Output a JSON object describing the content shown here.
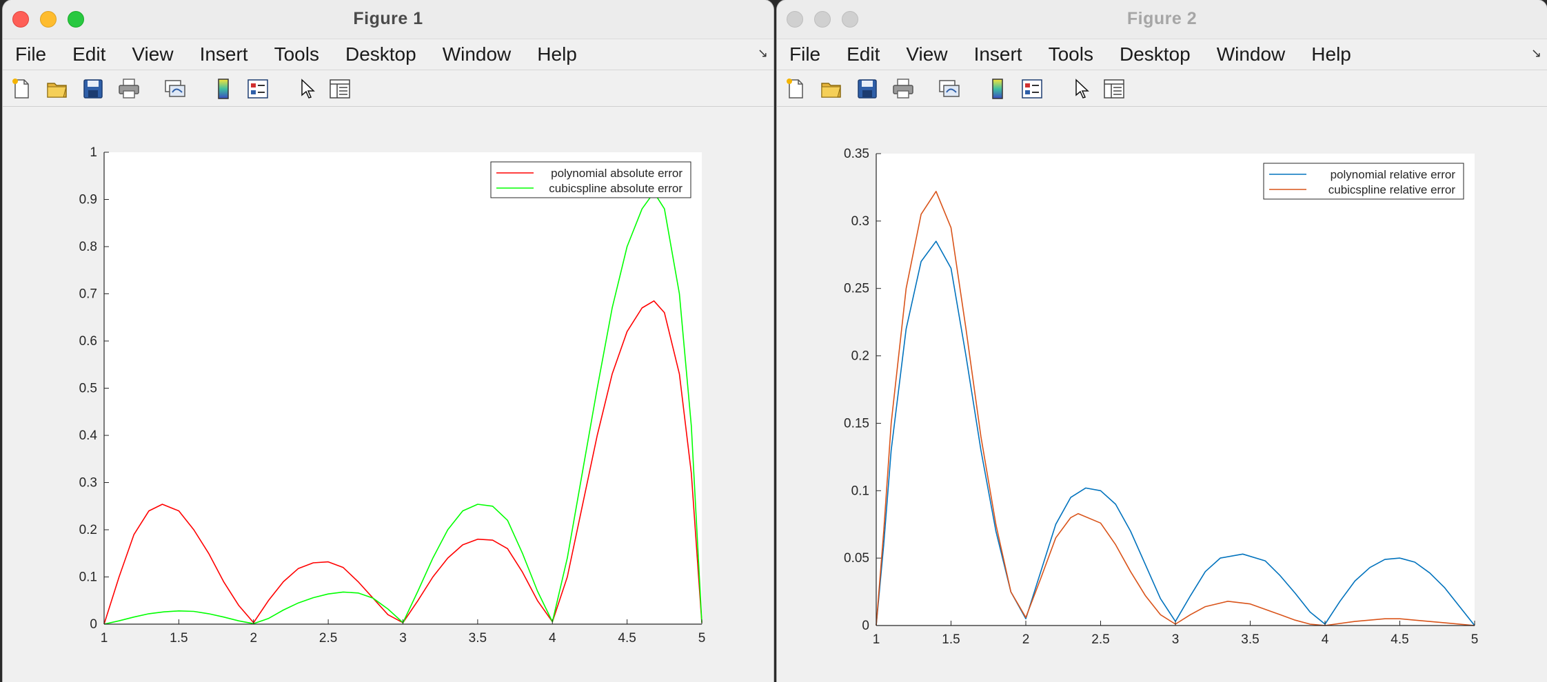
{
  "windows": [
    {
      "title": "Figure 1",
      "state": "active",
      "menu": [
        "File",
        "Edit",
        "View",
        "Insert",
        "Tools",
        "Desktop",
        "Window",
        "Help"
      ],
      "toolbar_icons": [
        "new-figure-icon",
        "open-file-icon",
        "save-icon",
        "print-icon",
        "link-plot-icon",
        "colorbar-icon",
        "legend-icon",
        "pointer-icon",
        "property-inspector-icon"
      ]
    },
    {
      "title": "Figure 2",
      "state": "inactive",
      "menu": [
        "File",
        "Edit",
        "View",
        "Insert",
        "Tools",
        "Desktop",
        "Window",
        "Help"
      ],
      "toolbar_icons": [
        "new-figure-icon",
        "open-file-icon",
        "save-icon",
        "print-icon",
        "link-plot-icon",
        "colorbar-icon",
        "legend-icon",
        "pointer-icon",
        "property-inspector-icon"
      ]
    }
  ],
  "chart_data": [
    {
      "type": "line",
      "title": "",
      "xlabel": "",
      "ylabel": "",
      "xlim": [
        1,
        5
      ],
      "ylim": [
        0,
        1
      ],
      "xticks": [
        "1",
        "1.5",
        "2",
        "2.5",
        "3",
        "3.5",
        "4",
        "4.5",
        "5"
      ],
      "yticks": [
        "0",
        "0.1",
        "0.2",
        "0.3",
        "0.4",
        "0.5",
        "0.6",
        "0.7",
        "0.8",
        "0.9",
        "1"
      ],
      "grid": false,
      "legend_position": "top-right",
      "series": [
        {
          "name": "polynomial absolute error",
          "color": "#ff0000",
          "points": [
            [
              1,
              0
            ],
            [
              1.1,
              0.1
            ],
            [
              1.2,
              0.19
            ],
            [
              1.3,
              0.24
            ],
            [
              1.39,
              0.254
            ],
            [
              1.5,
              0.24
            ],
            [
              1.6,
              0.2
            ],
            [
              1.7,
              0.15
            ],
            [
              1.8,
              0.09
            ],
            [
              1.9,
              0.04
            ],
            [
              2,
              0.003
            ],
            [
              2.1,
              0.05
            ],
            [
              2.2,
              0.09
            ],
            [
              2.3,
              0.118
            ],
            [
              2.4,
              0.13
            ],
            [
              2.5,
              0.132
            ],
            [
              2.6,
              0.12
            ],
            [
              2.7,
              0.09
            ],
            [
              2.8,
              0.055
            ],
            [
              2.9,
              0.02
            ],
            [
              3,
              0.003
            ],
            [
              3.1,
              0.05
            ],
            [
              3.2,
              0.1
            ],
            [
              3.3,
              0.14
            ],
            [
              3.4,
              0.168
            ],
            [
              3.5,
              0.18
            ],
            [
              3.6,
              0.178
            ],
            [
              3.7,
              0.16
            ],
            [
              3.8,
              0.11
            ],
            [
              3.9,
              0.05
            ],
            [
              4,
              0.005
            ],
            [
              4.1,
              0.1
            ],
            [
              4.2,
              0.25
            ],
            [
              4.3,
              0.4
            ],
            [
              4.4,
              0.53
            ],
            [
              4.5,
              0.62
            ],
            [
              4.6,
              0.67
            ],
            [
              4.68,
              0.685
            ],
            [
              4.75,
              0.66
            ],
            [
              4.85,
              0.53
            ],
            [
              4.93,
              0.32
            ],
            [
              5,
              0.003
            ]
          ]
        },
        {
          "name": "cubicspline absolute error",
          "color": "#00ff00",
          "points": [
            [
              1,
              0
            ],
            [
              1.1,
              0.007
            ],
            [
              1.2,
              0.015
            ],
            [
              1.3,
              0.022
            ],
            [
              1.4,
              0.026
            ],
            [
              1.5,
              0.028
            ],
            [
              1.6,
              0.027
            ],
            [
              1.7,
              0.022
            ],
            [
              1.8,
              0.015
            ],
            [
              1.9,
              0.007
            ],
            [
              2,
              0.001
            ],
            [
              2.1,
              0.012
            ],
            [
              2.2,
              0.03
            ],
            [
              2.3,
              0.045
            ],
            [
              2.4,
              0.056
            ],
            [
              2.5,
              0.064
            ],
            [
              2.6,
              0.068
            ],
            [
              2.7,
              0.066
            ],
            [
              2.8,
              0.055
            ],
            [
              2.9,
              0.032
            ],
            [
              3,
              0.003
            ],
            [
              3.1,
              0.07
            ],
            [
              3.2,
              0.14
            ],
            [
              3.3,
              0.2
            ],
            [
              3.4,
              0.24
            ],
            [
              3.5,
              0.254
            ],
            [
              3.6,
              0.25
            ],
            [
              3.7,
              0.22
            ],
            [
              3.8,
              0.15
            ],
            [
              3.9,
              0.07
            ],
            [
              4,
              0.005
            ],
            [
              4.1,
              0.14
            ],
            [
              4.2,
              0.32
            ],
            [
              4.3,
              0.5
            ],
            [
              4.4,
              0.67
            ],
            [
              4.5,
              0.8
            ],
            [
              4.6,
              0.88
            ],
            [
              4.68,
              0.915
            ],
            [
              4.75,
              0.88
            ],
            [
              4.85,
              0.7
            ],
            [
              4.93,
              0.42
            ],
            [
              5,
              0.003
            ]
          ]
        }
      ]
    },
    {
      "type": "line",
      "title": "",
      "xlabel": "",
      "ylabel": "",
      "xlim": [
        1,
        5
      ],
      "ylim": [
        0,
        0.35
      ],
      "xticks": [
        "1",
        "1.5",
        "2",
        "2.5",
        "3",
        "3.5",
        "4",
        "4.5",
        "5"
      ],
      "yticks": [
        "0",
        "0.05",
        "0.1",
        "0.15",
        "0.2",
        "0.25",
        "0.3",
        "0.35"
      ],
      "grid": false,
      "legend_position": "top-right",
      "series": [
        {
          "name": "polynomial relative error",
          "color": "#0072bd",
          "points": [
            [
              1,
              0
            ],
            [
              1.05,
              0.06
            ],
            [
              1.1,
              0.13
            ],
            [
              1.2,
              0.22
            ],
            [
              1.3,
              0.27
            ],
            [
              1.4,
              0.285
            ],
            [
              1.5,
              0.265
            ],
            [
              1.6,
              0.2
            ],
            [
              1.7,
              0.13
            ],
            [
              1.8,
              0.07
            ],
            [
              1.9,
              0.025
            ],
            [
              2,
              0.005
            ],
            [
              2.1,
              0.04
            ],
            [
              2.2,
              0.075
            ],
            [
              2.3,
              0.095
            ],
            [
              2.4,
              0.102
            ],
            [
              2.5,
              0.1
            ],
            [
              2.6,
              0.09
            ],
            [
              2.7,
              0.07
            ],
            [
              2.8,
              0.045
            ],
            [
              2.9,
              0.02
            ],
            [
              3,
              0.003
            ],
            [
              3.1,
              0.022
            ],
            [
              3.2,
              0.04
            ],
            [
              3.3,
              0.05
            ],
            [
              3.45,
              0.053
            ],
            [
              3.6,
              0.048
            ],
            [
              3.7,
              0.037
            ],
            [
              3.8,
              0.024
            ],
            [
              3.9,
              0.01
            ],
            [
              4,
              0.001
            ],
            [
              4.1,
              0.018
            ],
            [
              4.2,
              0.033
            ],
            [
              4.3,
              0.043
            ],
            [
              4.4,
              0.049
            ],
            [
              4.5,
              0.05
            ],
            [
              4.6,
              0.047
            ],
            [
              4.7,
              0.039
            ],
            [
              4.8,
              0.028
            ],
            [
              4.9,
              0.014
            ],
            [
              5,
              0
            ]
          ]
        },
        {
          "name": "cubicspline relative error",
          "color": "#d95319",
          "points": [
            [
              1,
              0
            ],
            [
              1.05,
              0.07
            ],
            [
              1.1,
              0.15
            ],
            [
              1.2,
              0.25
            ],
            [
              1.3,
              0.305
            ],
            [
              1.4,
              0.322
            ],
            [
              1.5,
              0.295
            ],
            [
              1.6,
              0.22
            ],
            [
              1.7,
              0.14
            ],
            [
              1.8,
              0.075
            ],
            [
              1.9,
              0.025
            ],
            [
              2,
              0.006
            ],
            [
              2.1,
              0.035
            ],
            [
              2.2,
              0.065
            ],
            [
              2.3,
              0.08
            ],
            [
              2.35,
              0.083
            ],
            [
              2.5,
              0.076
            ],
            [
              2.6,
              0.06
            ],
            [
              2.7,
              0.04
            ],
            [
              2.8,
              0.022
            ],
            [
              2.9,
              0.008
            ],
            [
              3,
              0.001
            ],
            [
              3.1,
              0.008
            ],
            [
              3.2,
              0.014
            ],
            [
              3.35,
              0.018
            ],
            [
              3.5,
              0.016
            ],
            [
              3.6,
              0.012
            ],
            [
              3.7,
              0.008
            ],
            [
              3.8,
              0.004
            ],
            [
              3.9,
              0.001
            ],
            [
              4,
              0
            ],
            [
              4.2,
              0.003
            ],
            [
              4.4,
              0.005
            ],
            [
              4.5,
              0.005
            ],
            [
              4.6,
              0.004
            ],
            [
              4.8,
              0.002
            ],
            [
              5,
              0
            ]
          ]
        }
      ]
    }
  ]
}
